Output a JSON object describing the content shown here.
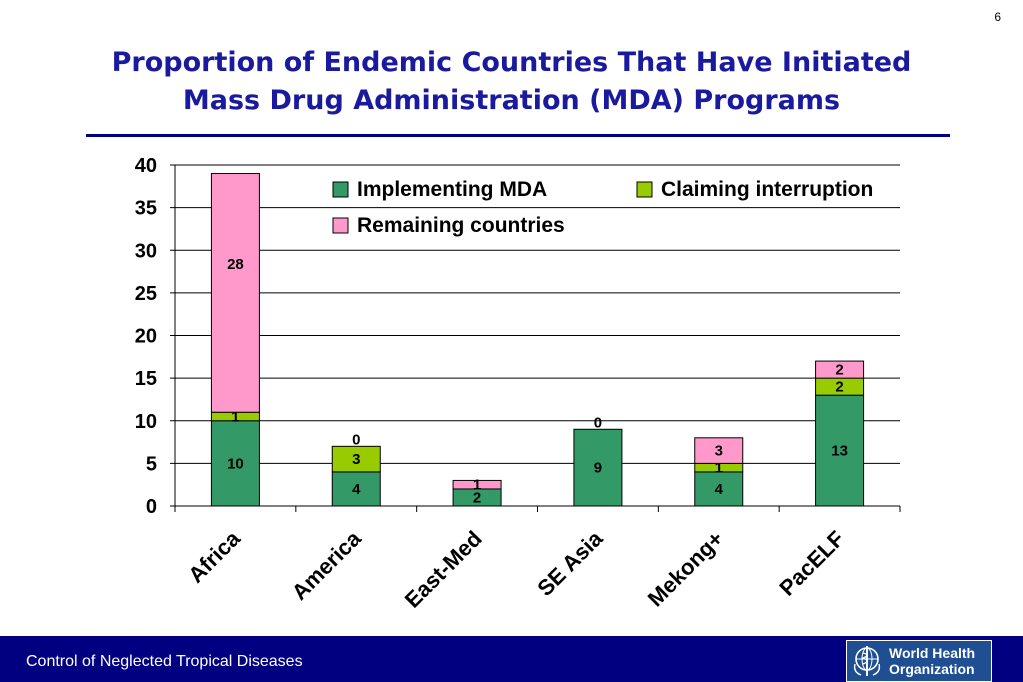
{
  "page_number": "6",
  "title_lines": [
    "Proportion of Endemic Countries That Have Initiated",
    "Mass Drug Administration (MDA) Programs"
  ],
  "footer_text": "Control of Neglected Tropical Diseases",
  "logo_text_lines": [
    "World Health",
    "Organization"
  ],
  "colors": {
    "title": "#1a1a9e",
    "footer_bg": "#000080",
    "implementing": "#339966",
    "claiming": "#99cc00",
    "remaining": "#ff99cc"
  },
  "chart_data": {
    "type": "bar",
    "stacked": true,
    "categories": [
      "Africa",
      "America",
      "East-Med",
      "SE Asia",
      "Mekong+",
      "PacELF"
    ],
    "series": [
      {
        "name": "Implementing MDA",
        "values": [
          10,
          4,
          2,
          9,
          4,
          13
        ],
        "color": "#339966"
      },
      {
        "name": "Claiming interruption",
        "values": [
          1,
          3,
          0,
          0,
          1,
          2
        ],
        "color": "#99cc00"
      },
      {
        "name": "Remaining countries",
        "values": [
          28,
          0,
          1,
          0,
          3,
          2
        ],
        "color": "#ff99cc"
      }
    ],
    "data_labels": [
      [
        "10",
        "1",
        "28"
      ],
      [
        "4",
        "3",
        "0"
      ],
      [
        "2",
        "",
        "1"
      ],
      [
        "9",
        "0",
        ""
      ],
      [
        "4",
        "1",
        "3"
      ],
      [
        "13",
        "2",
        "2"
      ]
    ],
    "yticks": [
      0,
      5,
      10,
      15,
      20,
      25,
      30,
      35,
      40
    ],
    "ylim": [
      0,
      40
    ],
    "grid": true,
    "legend_position": "top-right"
  }
}
